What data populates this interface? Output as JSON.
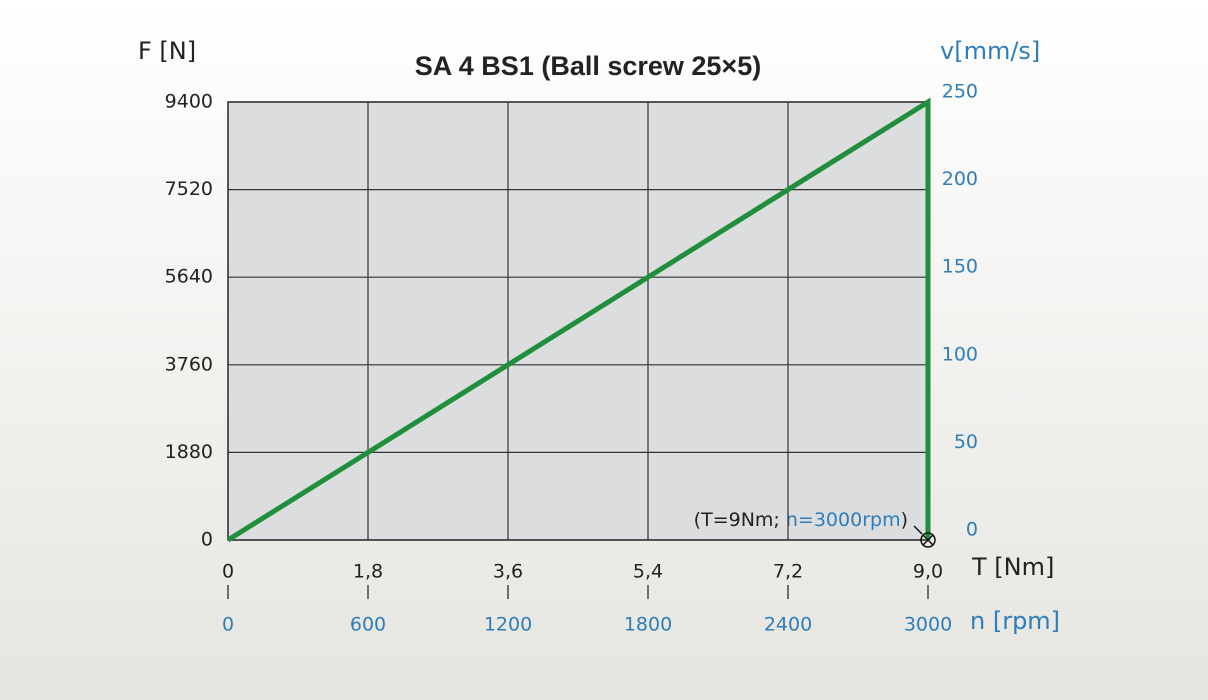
{
  "chart_data": {
    "type": "line",
    "title": "SA 4   BS1 (Ball screw 25×5)",
    "y_label": "F [N]",
    "y2_label": "v[mm/s]",
    "x_label": "T [Nm]",
    "x2_label": "n [rpm]",
    "annotation": [
      "(T=9Nm;",
      "n=3000rpm",
      ")"
    ],
    "xlim": [
      0,
      9
    ],
    "xticks": [
      0,
      {
        "value": 1.8,
        "label": "1,8"
      },
      {
        "value": 3.6,
        "label": "3,6"
      },
      {
        "value": 5.4,
        "label": "5,4"
      },
      {
        "value": 7.2,
        "label": "7,2"
      },
      {
        "value": 9,
        "label": "9,0"
      }
    ],
    "x2lim": [
      0,
      3000
    ],
    "x2ticks": [
      0,
      600,
      1200,
      1800,
      2400,
      3000
    ],
    "ylim": [
      0,
      9400
    ],
    "yticks": [
      0,
      1880,
      3760,
      5640,
      7520,
      9400
    ],
    "y2lim": [
      0,
      250
    ],
    "y2ticks": [
      0,
      50,
      100,
      150,
      200,
      250
    ],
    "grid": true,
    "series": [
      {
        "color": "#1f8e3d",
        "x": [
          0,
          9,
          9
        ],
        "values": [
          0,
          9400,
          0
        ]
      }
    ]
  }
}
